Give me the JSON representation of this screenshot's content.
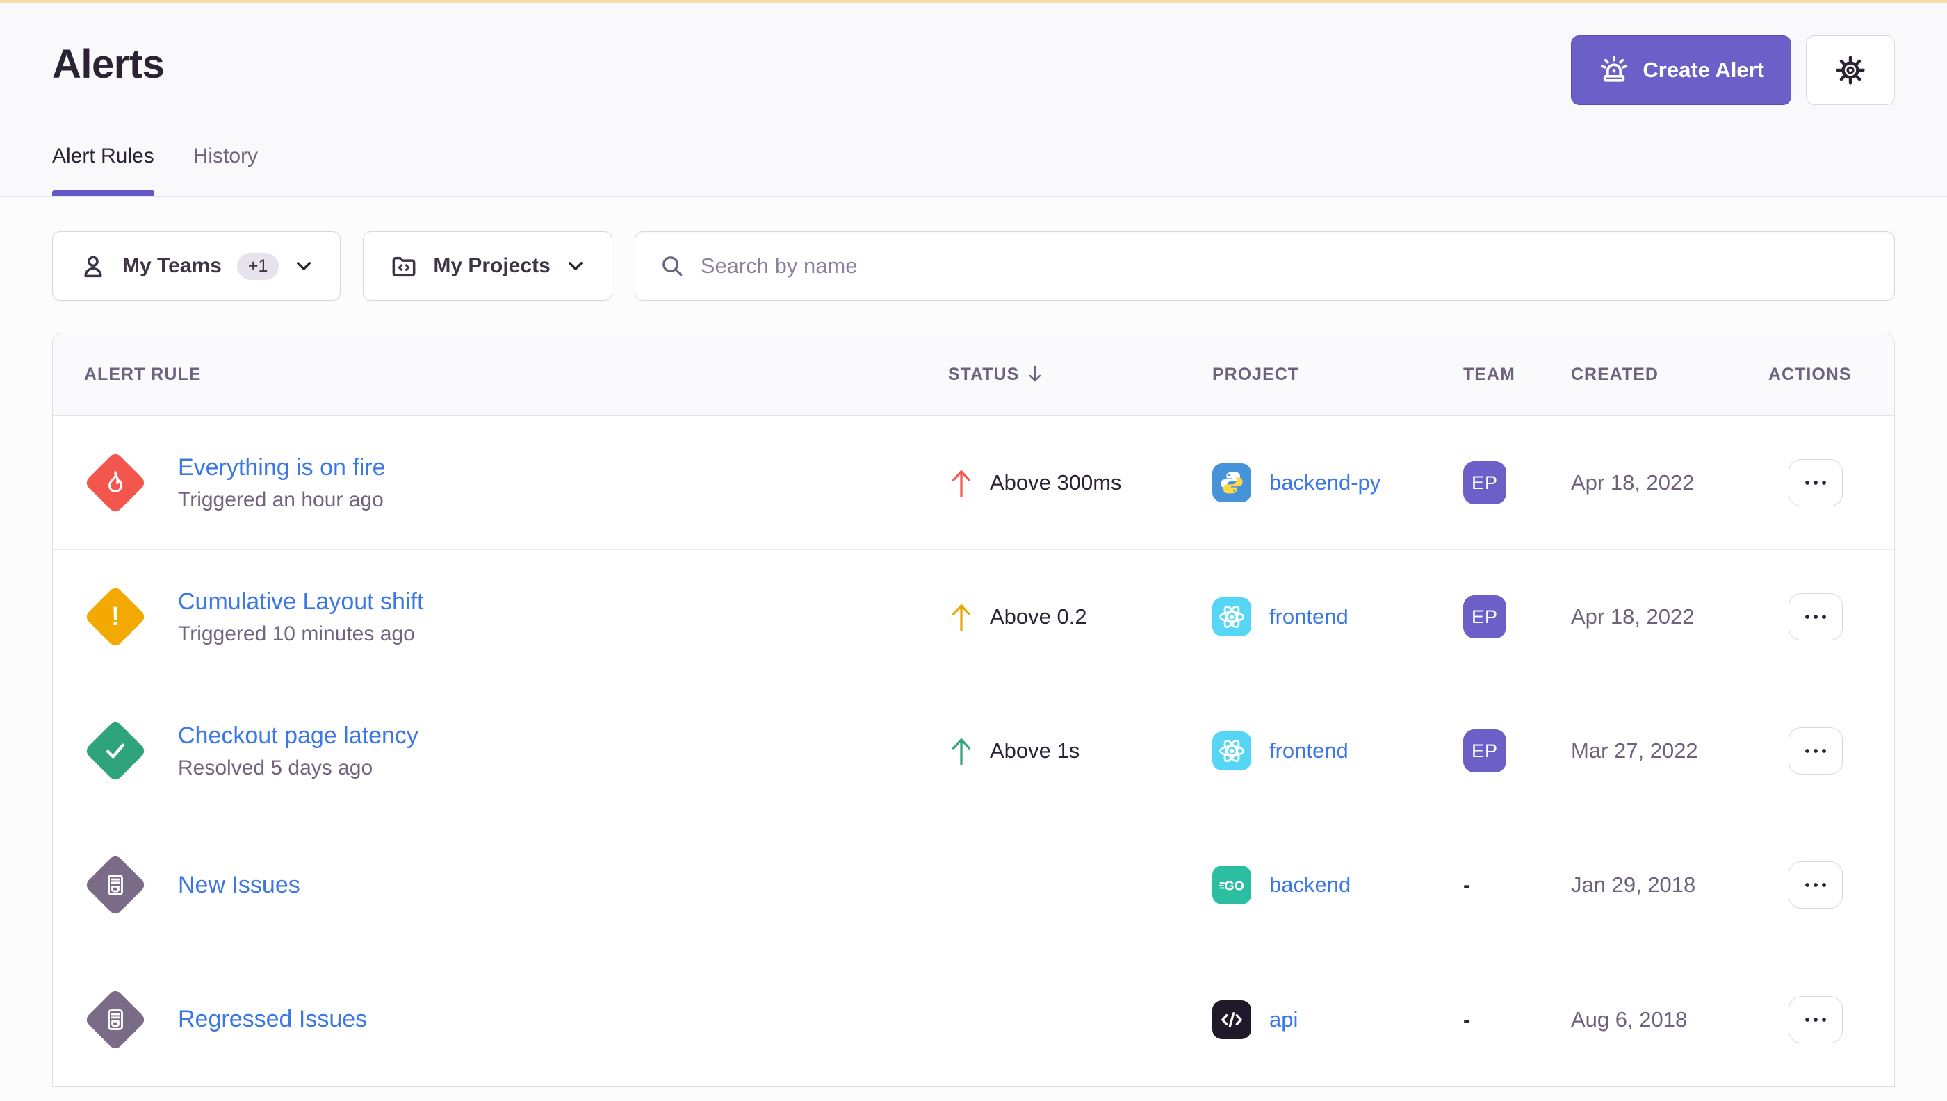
{
  "page": {
    "title": "Alerts"
  },
  "tabs": [
    {
      "label": "Alert Rules",
      "active": true
    },
    {
      "label": "History",
      "active": false
    }
  ],
  "header_actions": {
    "create_alert_label": "Create Alert"
  },
  "filters": {
    "teams_label": "My Teams",
    "teams_extra_count": "+1",
    "projects_label": "My Projects",
    "search_placeholder": "Search by name"
  },
  "colors": {
    "accent_purple": "#6C5FC7",
    "link_blue": "#3B77E5",
    "critical_red": "#F2564D",
    "warning_amber": "#F4A900",
    "resolved_green": "#2FA37C",
    "muted_purple": "#7A6C87",
    "top_strip_yellow": "#F6DFA6"
  },
  "table": {
    "columns": [
      "ALERT RULE",
      "STATUS",
      "PROJECT",
      "TEAM",
      "CREATED",
      "ACTIONS"
    ],
    "sorted_column": "STATUS",
    "sort_direction": "down",
    "rows": [
      {
        "name": "Everything is on fire",
        "subtitle": "Triggered an hour ago",
        "icon": "fire",
        "icon_color": "#F2564D",
        "status": "Above 300ms",
        "status_color": "#F2564D",
        "project": "backend-py",
        "project_icon": "python",
        "project_icon_color": "#4793D9",
        "team": "EP",
        "created": "Apr 18, 2022"
      },
      {
        "name": "Cumulative Layout shift",
        "subtitle": "Triggered 10 minutes ago",
        "icon": "warning",
        "icon_color": "#F4A900",
        "status": "Above 0.2",
        "status_color": "#E8A602",
        "project": "frontend",
        "project_icon": "react",
        "project_icon_color": "#55D6F4",
        "team": "EP",
        "created": "Apr 18, 2022"
      },
      {
        "name": "Checkout page latency",
        "subtitle": "Resolved 5 days ago",
        "icon": "check",
        "icon_color": "#2FA37C",
        "status": "Above 1s",
        "status_color": "#2FA37C",
        "project": "frontend",
        "project_icon": "react",
        "project_icon_color": "#55D6F4",
        "team": "EP",
        "created": "Mar 27, 2022"
      },
      {
        "name": "New Issues",
        "subtitle": "",
        "icon": "issues",
        "icon_color": "#7A6C87",
        "status": "",
        "status_color": "",
        "project": "backend",
        "project_icon": "go",
        "project_icon_color": "#2BBEA0",
        "team": "-",
        "created": "Jan 29, 2018"
      },
      {
        "name": "Regressed Issues",
        "subtitle": "",
        "icon": "issues",
        "icon_color": "#7A6C87",
        "status": "",
        "status_color": "",
        "project": "api",
        "project_icon": "code",
        "project_icon_color": "#201929",
        "team": "-",
        "created": "Aug 6, 2018"
      }
    ]
  }
}
